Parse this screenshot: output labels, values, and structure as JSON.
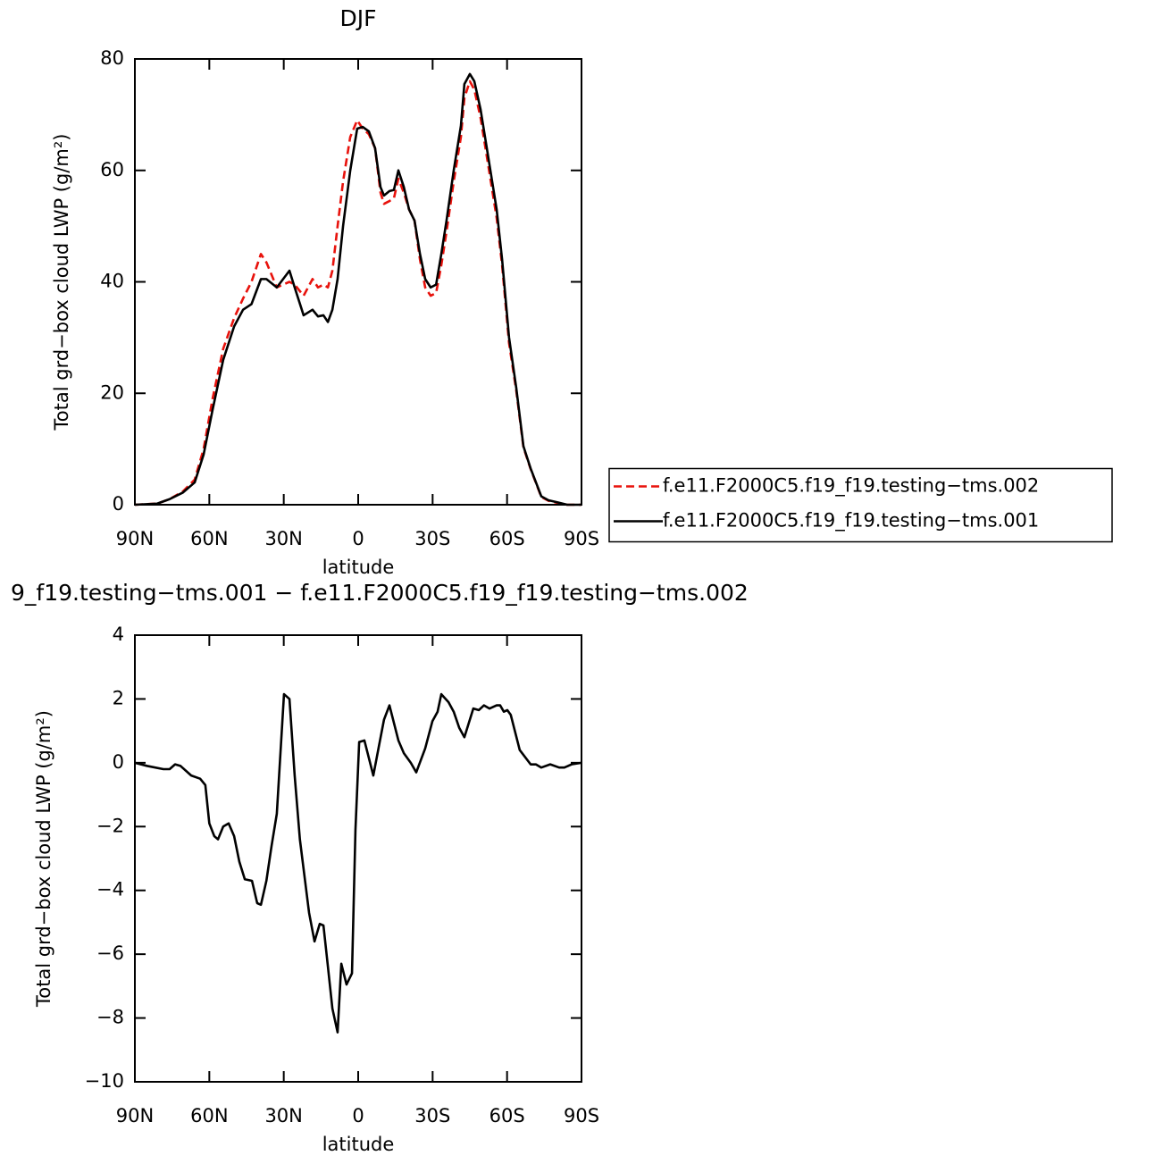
{
  "chart_data": [
    {
      "type": "line",
      "title": "DJF",
      "xlabel": "latitude",
      "ylabel": "Total grd−box cloud LWP (g/m²)",
      "xlim": [
        90,
        -90
      ],
      "ylim": [
        0,
        80
      ],
      "xticks": [
        {
          "value": 90,
          "label": "90N"
        },
        {
          "value": 60,
          "label": "60N"
        },
        {
          "value": 30,
          "label": "30N"
        },
        0,
        {
          "value": -30,
          "label": "30S"
        },
        {
          "value": -60,
          "label": "60S"
        },
        {
          "value": -90,
          "label": "90S"
        }
      ],
      "yticks": [
        0,
        20,
        40,
        60,
        80
      ],
      "legend": "right",
      "x": [
        90,
        81,
        76,
        70.6,
        65.9,
        62.3,
        58.7,
        54.4,
        50,
        46.4,
        43,
        39.2,
        37,
        32.8,
        27.7,
        25.6,
        22,
        18.4,
        16.2,
        14,
        12.2,
        10.4,
        8.3,
        6.1,
        3.2,
        0.4,
        -1.8,
        -4.3,
        -6.8,
        -9,
        -10.4,
        -12.6,
        -14.4,
        -16.2,
        -18.4,
        -20.5,
        -22.7,
        -24.9,
        -27,
        -29.2,
        -31.4,
        -33.5,
        -35.6,
        -38.5,
        -41.4,
        -42.8,
        -45,
        -46.8,
        -49.3,
        -52.2,
        -55.8,
        -58,
        -60.8,
        -63.7,
        -66.6,
        -69.5,
        -73.8,
        -76.7,
        -80.6,
        -84.2,
        -90
      ],
      "series": [
        {
          "name": "f.e11.F2000C5.f19_f19.testing−tms.002",
          "color": "#e8120c",
          "linestyle": "dashed",
          "values": [
            0,
            0.2,
            1,
            2.4,
            4.5,
            10,
            19,
            28,
            33.5,
            37,
            40,
            45,
            43.5,
            39,
            40,
            39.5,
            37.5,
            40.5,
            39,
            39.5,
            39,
            42,
            50,
            58,
            66,
            69,
            67.5,
            66.5,
            64,
            56,
            54,
            54.5,
            55,
            58.5,
            56,
            53,
            51,
            44,
            39,
            37.5,
            38,
            43,
            49,
            58,
            66,
            73,
            76,
            74.5,
            69.5,
            61.5,
            51.5,
            43,
            29,
            20.5,
            10.3,
            6.4,
            1.4,
            0.7,
            0.3,
            0,
            0
          ]
        },
        {
          "name": "f.e11.F2000C5.f19_f19.testing−tms.001",
          "color": "#000000",
          "linestyle": "solid",
          "values": [
            0,
            0.2,
            1,
            2.2,
            4,
            9,
            17,
            26,
            32,
            35,
            36,
            40.5,
            40.5,
            39,
            42,
            39,
            34,
            35,
            33.8,
            34,
            32.8,
            35,
            40.5,
            50,
            60,
            67.5,
            67.8,
            67,
            64,
            57,
            55.5,
            56.3,
            56.5,
            60,
            57,
            53,
            51,
            45,
            40.5,
            39,
            39.5,
            45,
            51,
            60,
            68,
            75.5,
            77.3,
            76,
            71,
            63,
            53,
            44,
            30,
            21,
            10.5,
            6.5,
            1.5,
            0.8,
            0.4,
            0,
            0
          ]
        }
      ]
    },
    {
      "type": "line",
      "title": "9_f19.testing−tms.001 − f.e11.F2000C5.f19_f19.testing−tms.002",
      "xlabel": "latitude",
      "ylabel": "Total grd−box cloud LWP (g/m²)",
      "xlim": [
        90,
        -90
      ],
      "ylim": [
        -10,
        4
      ],
      "xticks": [
        {
          "value": 90,
          "label": "90N"
        },
        {
          "value": 60,
          "label": "60N"
        },
        {
          "value": 30,
          "label": "30N"
        },
        0,
        {
          "value": -30,
          "label": "30S"
        },
        {
          "value": -60,
          "label": "60S"
        },
        {
          "value": -90,
          "label": "90S"
        }
      ],
      "yticks": [
        {
          "value": -10,
          "label": "−10"
        },
        {
          "value": -8,
          "label": "−8"
        },
        {
          "value": -6,
          "label": "−6"
        },
        {
          "value": -4,
          "label": "−4"
        },
        {
          "value": -2,
          "label": "−2"
        },
        0,
        2,
        4
      ],
      "x": [
        90,
        85,
        78.5,
        76,
        73.8,
        71.6,
        67.3,
        63.7,
        61.6,
        60,
        58,
        56.5,
        54.4,
        52.2,
        50,
        47.9,
        45.7,
        42.8,
        40.7,
        39.2,
        37,
        34.9,
        32.8,
        29.9,
        27.7,
        25.6,
        23.5,
        19.8,
        17.6,
        15.5,
        14,
        12.6,
        10.4,
        8.3,
        6.8,
        4.7,
        2.5,
        1.1,
        -0.4,
        -2.5,
        -6.1,
        -8.3,
        -10.4,
        -12.6,
        -16.2,
        -18.4,
        -21.2,
        -23.4,
        -27,
        -29.9,
        -32,
        -33.5,
        -36.4,
        -38.5,
        -40.7,
        -42.8,
        -46.4,
        -48.6,
        -50.7,
        -52.9,
        -55.8,
        -57.2,
        -58.7,
        -60.1,
        -61.5,
        -65.1,
        -69.5,
        -71.6,
        -73.8,
        -77.4,
        -81,
        -83.1,
        -86,
        -90
      ],
      "series": [
        {
          "color": "#000000",
          "linestyle": "solid",
          "values": [
            0,
            -0.1,
            -0.2,
            -0.2,
            -0.05,
            -0.1,
            -0.4,
            -0.5,
            -0.7,
            -1.9,
            -2.3,
            -2.4,
            -2,
            -1.9,
            -2.3,
            -3.1,
            -3.65,
            -3.7,
            -4.4,
            -4.45,
            -3.7,
            -2.6,
            -1.6,
            2.15,
            2,
            -0.4,
            -2.4,
            -4.7,
            -5.6,
            -5.05,
            -5.1,
            -6.1,
            -7.7,
            -8.45,
            -6.3,
            -6.95,
            -6.6,
            -2.1,
            0.65,
            0.7,
            -0.4,
            0.5,
            1.35,
            1.8,
            0.7,
            0.3,
            0,
            -0.3,
            0.45,
            1.3,
            1.6,
            2.15,
            1.9,
            1.6,
            1.1,
            0.8,
            1.7,
            1.65,
            1.8,
            1.7,
            1.8,
            1.8,
            1.6,
            1.65,
            1.5,
            0.4,
            -0.05,
            -0.05,
            -0.15,
            -0.05,
            -0.15,
            -0.15,
            -0.05,
            0
          ]
        }
      ]
    }
  ]
}
